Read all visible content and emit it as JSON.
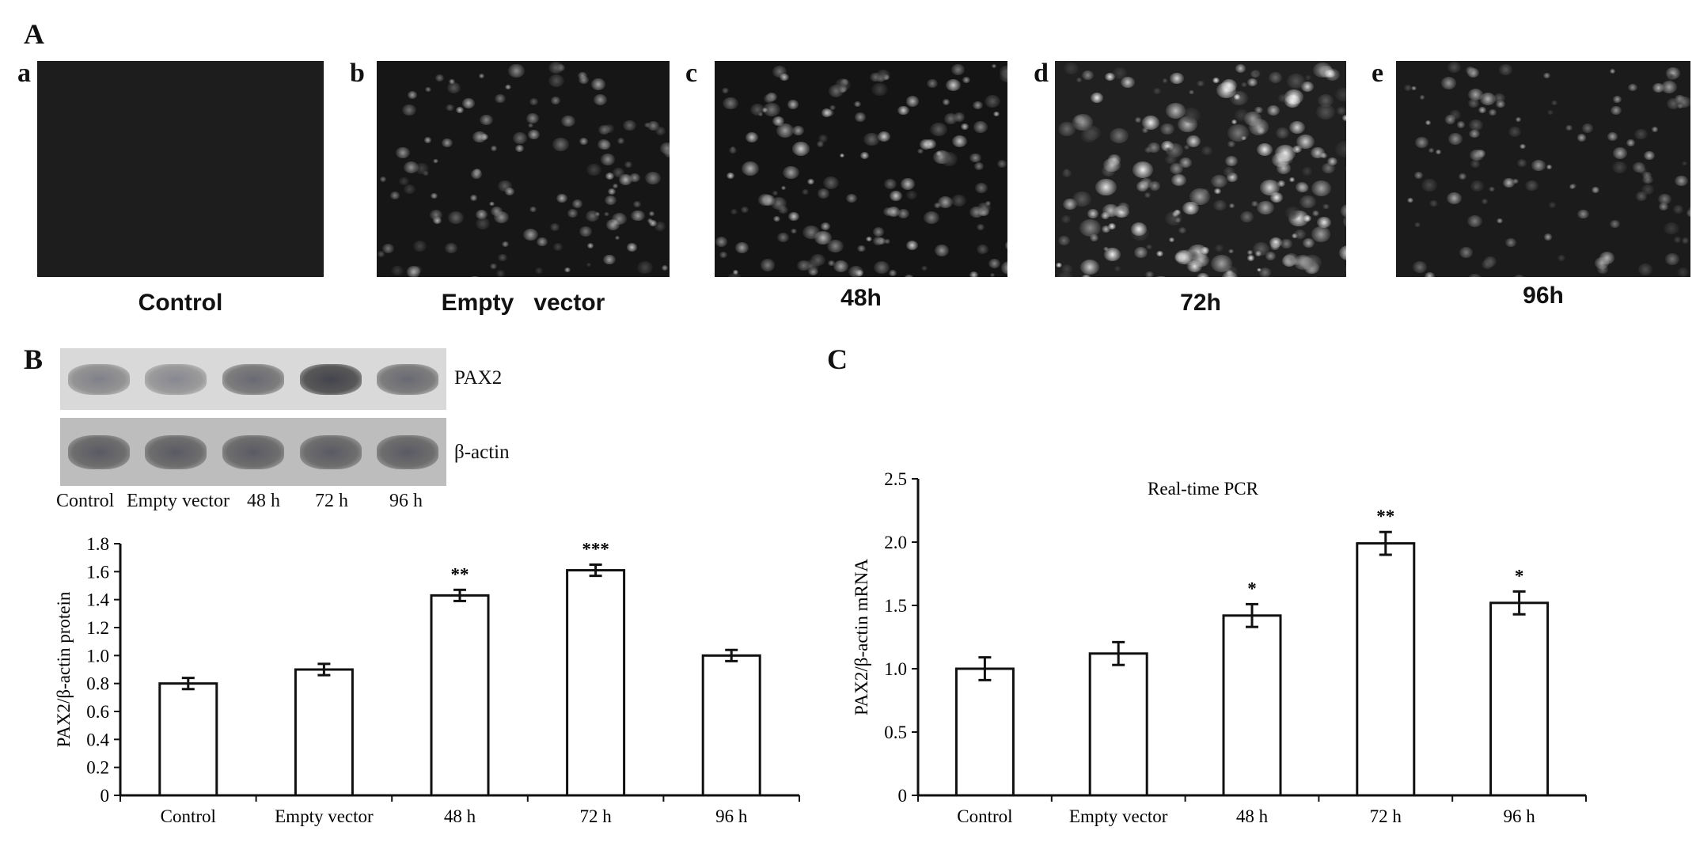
{
  "panels": {
    "A": "A",
    "B": "B",
    "C": "C"
  },
  "micrographs": [
    {
      "letter": "a",
      "caption": "Control",
      "intensity": 0.0
    },
    {
      "letter": "b",
      "caption": "Empty   vector",
      "intensity": 0.35
    },
    {
      "letter": "c",
      "caption": "48h",
      "intensity": 0.45
    },
    {
      "letter": "d",
      "caption": "72h",
      "intensity": 0.8
    },
    {
      "letter": "e",
      "caption": "96h",
      "intensity": 0.3
    }
  ],
  "blot": {
    "rows": [
      "PAX2",
      "β-actin"
    ],
    "lanes": [
      "Control",
      "Empty vector",
      "48 h",
      "72 h",
      "96 h"
    ],
    "pax2_band_darkness": [
      0.35,
      0.3,
      0.5,
      0.75,
      0.5
    ],
    "actin_band_darkness": [
      0.6,
      0.6,
      0.6,
      0.6,
      0.6
    ]
  },
  "chart_data": [
    {
      "type": "bar",
      "categories": [
        "Control",
        "Empty vector",
        "48 h",
        "72 h",
        "96 h"
      ],
      "values": [
        0.8,
        0.9,
        1.43,
        1.61,
        1.0
      ],
      "errors": [
        0.04,
        0.04,
        0.04,
        0.04,
        0.04
      ],
      "significance": [
        "",
        "",
        "**",
        "***",
        ""
      ],
      "title": "",
      "xlabel": "",
      "ylabel": "PAX2/β-actin protein",
      "ylim": [
        0,
        1.8
      ],
      "yticks": [
        "0",
        "0.2",
        "0.4",
        "0.6",
        "0.8",
        "1.0",
        "1.2",
        "1.4",
        "1.6",
        "1.8"
      ],
      "grid": false
    },
    {
      "type": "bar",
      "categories": [
        "Control",
        "Empty vector",
        "48 h",
        "72 h",
        "96 h"
      ],
      "values": [
        1.0,
        1.12,
        1.42,
        1.99,
        1.52
      ],
      "errors": [
        0.09,
        0.09,
        0.09,
        0.09,
        0.09
      ],
      "significance": [
        "",
        "",
        "*",
        "**",
        "*"
      ],
      "title": "Real-time PCR",
      "xlabel": "",
      "ylabel": "PAX2/β-actin mRNA",
      "ylim": [
        0,
        2.5
      ],
      "yticks": [
        "0",
        "0.5",
        "1.0",
        "1.5",
        "2.0",
        "2.5"
      ],
      "grid": false
    }
  ]
}
